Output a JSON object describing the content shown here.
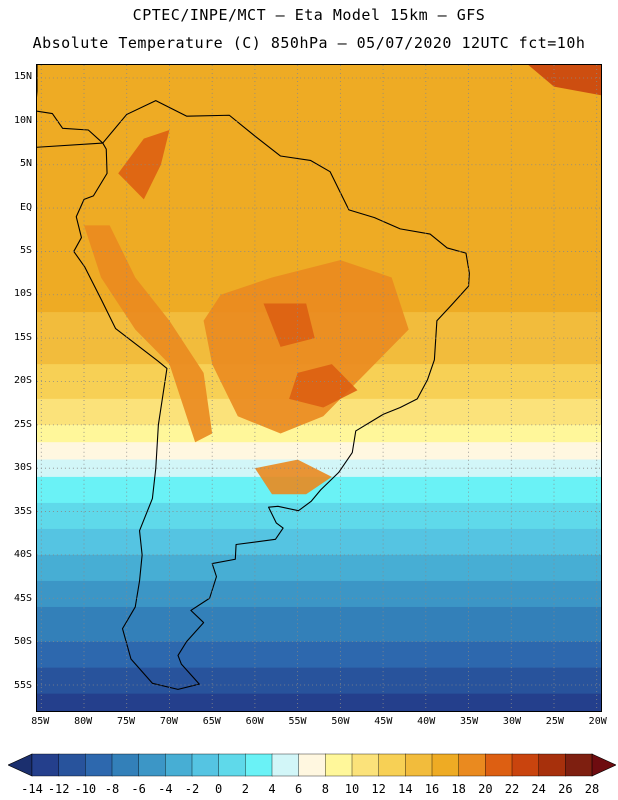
{
  "title_line1": "CPTEC/INPE/MCT –  Eta Model 15km – GFS",
  "title_line2": "Absolute Temperature (C) 850hPa – 05/07/2020 12UTC fct=10h",
  "lat_labels": [
    "15N",
    "10N",
    "5N",
    "EQ",
    "5S",
    "10S",
    "15S",
    "20S",
    "25S",
    "30S",
    "35S",
    "40S",
    "45S",
    "50S",
    "55S"
  ],
  "lat_values": [
    15,
    10,
    5,
    0,
    -5,
    -10,
    -15,
    -20,
    -25,
    -30,
    -35,
    -40,
    -45,
    -50,
    -55
  ],
  "lon_labels": [
    "85W",
    "80W",
    "75W",
    "70W",
    "65W",
    "60W",
    "55W",
    "50W",
    "45W",
    "40W",
    "35W",
    "30W",
    "25W",
    "20W"
  ],
  "lon_values": [
    -85,
    -80,
    -75,
    -70,
    -65,
    -60,
    -55,
    -50,
    -45,
    -40,
    -35,
    -30,
    -25,
    -20
  ],
  "map_extent": {
    "lon_min": -85.5,
    "lon_max": -19.5,
    "lat_min": -58,
    "lat_max": 16.5
  },
  "colorbar": {
    "labels": [
      "-14",
      "-12",
      "-10",
      "-8",
      "-6",
      "-4",
      "-2",
      "0",
      "2",
      "4",
      "6",
      "8",
      "10",
      "12",
      "14",
      "16",
      "18",
      "20",
      "22",
      "24",
      "26",
      "28"
    ],
    "colors": [
      "#243f8c",
      "#28539c",
      "#2d68ae",
      "#3380b9",
      "#3c96c6",
      "#47aed4",
      "#55c4e2",
      "#5fd9ea",
      "#6af2f6",
      "#d2f6f8",
      "#fff7e0",
      "#fff79a",
      "#fbe27a",
      "#f7d055",
      "#f2bc3c",
      "#eeab24",
      "#ea8a1f",
      "#dd5f12",
      "#c9440e",
      "#a7300c",
      "#7e1f10"
    ],
    "low_end": "#1b2f6e",
    "high_end": "#6e0c10"
  },
  "bands": [
    {
      "lat": 16.5,
      "color": "#eeab24"
    },
    {
      "lat": -12,
      "color": "#f2bc3c"
    },
    {
      "lat": -18,
      "color": "#f7d055"
    },
    {
      "lat": -22,
      "color": "#fbe27a"
    },
    {
      "lat": -25,
      "color": "#fff79a"
    },
    {
      "lat": -27,
      "color": "#fff7e0"
    },
    {
      "lat": -29,
      "color": "#d2f6f8"
    },
    {
      "lat": -31,
      "color": "#6af2f6"
    },
    {
      "lat": -34,
      "color": "#5fd9ea"
    },
    {
      "lat": -37,
      "color": "#55c4e2"
    },
    {
      "lat": -40,
      "color": "#47aed4"
    },
    {
      "lat": -43,
      "color": "#3c96c6"
    },
    {
      "lat": -46,
      "color": "#3380b9"
    },
    {
      "lat": -50,
      "color": "#2d68ae"
    },
    {
      "lat": -53,
      "color": "#28539c"
    },
    {
      "lat": -56,
      "color": "#243f8c"
    }
  ],
  "land_outline": [
    [
      -77.8,
      7.5
    ],
    [
      -75,
      10.8
    ],
    [
      -71.6,
      12.4
    ],
    [
      -68,
      10.6
    ],
    [
      -63,
      10.7
    ],
    [
      -60,
      8.3
    ],
    [
      -57,
      6
    ],
    [
      -53.5,
      5.5
    ],
    [
      -51.2,
      4.2
    ],
    [
      -50,
      1.8
    ],
    [
      -49,
      -0.2
    ],
    [
      -46,
      -1.1
    ],
    [
      -43,
      -2.4
    ],
    [
      -39.5,
      -3
    ],
    [
      -37.5,
      -4.6
    ],
    [
      -35.3,
      -5.2
    ],
    [
      -34.9,
      -7.5
    ],
    [
      -35,
      -9
    ],
    [
      -37,
      -11.2
    ],
    [
      -38.7,
      -13
    ],
    [
      -39,
      -17.5
    ],
    [
      -39.8,
      -19.8
    ],
    [
      -41,
      -22
    ],
    [
      -43,
      -23
    ],
    [
      -45,
      -23.8
    ],
    [
      -48.2,
      -25.7
    ],
    [
      -48.6,
      -28.2
    ],
    [
      -50.2,
      -30.5
    ],
    [
      -52.3,
      -32.5
    ],
    [
      -53.4,
      -33.8
    ],
    [
      -54.9,
      -34.9
    ],
    [
      -57.3,
      -34.4
    ],
    [
      -58.4,
      -34.5
    ],
    [
      -57.5,
      -36.3
    ],
    [
      -56.7,
      -36.9
    ],
    [
      -57.6,
      -38.2
    ],
    [
      -62.2,
      -38.8
    ],
    [
      -62.3,
      -40.5
    ],
    [
      -65,
      -41
    ],
    [
      -64.5,
      -42.5
    ],
    [
      -65.3,
      -45
    ],
    [
      -67.5,
      -46.4
    ],
    [
      -66,
      -47.8
    ],
    [
      -68,
      -50
    ],
    [
      -69,
      -51.6
    ],
    [
      -68.6,
      -52.6
    ],
    [
      -66.5,
      -54.9
    ],
    [
      -69,
      -55.5
    ],
    [
      -72,
      -54.8
    ],
    [
      -74.5,
      -52
    ],
    [
      -75.5,
      -48.5
    ],
    [
      -74,
      -46
    ],
    [
      -73.5,
      -43
    ],
    [
      -73.2,
      -40
    ],
    [
      -73.5,
      -37.2
    ],
    [
      -72,
      -33.5
    ],
    [
      -71.6,
      -30
    ],
    [
      -71.3,
      -25
    ],
    [
      -70.3,
      -18.5
    ],
    [
      -71.4,
      -17.6
    ],
    [
      -76.3,
      -13.9
    ],
    [
      -78,
      -10.5
    ],
    [
      -79.9,
      -6.8
    ],
    [
      -81.2,
      -5
    ],
    [
      -80.3,
      -3.4
    ],
    [
      -80.9,
      -1
    ],
    [
      -80,
      1
    ],
    [
      -78.9,
      1.4
    ],
    [
      -77.3,
      4
    ],
    [
      -77.4,
      6.8
    ]
  ],
  "central_america_outline": [
    [
      -77.8,
      7.5
    ],
    [
      -79.5,
      9
    ],
    [
      -82.5,
      9.2
    ],
    [
      -83.7,
      10.9
    ],
    [
      -85.7,
      11.2
    ],
    [
      -85.5,
      13.5
    ],
    [
      -85.5,
      16.5
    ],
    [
      -85.7,
      16.5
    ],
    [
      -85.7,
      7
    ]
  ],
  "warm_regions": [
    {
      "color": "#ea8a1f",
      "points": [
        [
          -64,
          -10
        ],
        [
          -58,
          -8
        ],
        [
          -50,
          -6
        ],
        [
          -44,
          -8
        ],
        [
          -42,
          -14
        ],
        [
          -47,
          -19
        ],
        [
          -52,
          -24
        ],
        [
          -57,
          -26
        ],
        [
          -62,
          -24
        ],
        [
          -65,
          -18
        ],
        [
          -66,
          -13
        ]
      ]
    },
    {
      "color": "#ea8a1f",
      "points": [
        [
          -80,
          -2
        ],
        [
          -78,
          -8
        ],
        [
          -74,
          -14
        ],
        [
          -70,
          -18
        ],
        [
          -68,
          -24
        ],
        [
          -67,
          -27
        ],
        [
          -65,
          -26
        ],
        [
          -66,
          -19
        ],
        [
          -70,
          -13
        ],
        [
          -74,
          -8
        ],
        [
          -77,
          -2
        ]
      ]
    },
    {
      "color": "#dd5f12",
      "points": [
        [
          -76,
          4
        ],
        [
          -73,
          8
        ],
        [
          -70,
          9
        ],
        [
          -71,
          5
        ],
        [
          -73,
          1
        ]
      ]
    },
    {
      "color": "#ea8a1f",
      "points": [
        [
          -60,
          -30
        ],
        [
          -55,
          -29
        ],
        [
          -51,
          -31
        ],
        [
          -54,
          -33
        ],
        [
          -58,
          -33
        ]
      ]
    },
    {
      "color": "#dd5f12",
      "points": [
        [
          -59,
          -11
        ],
        [
          -54,
          -11
        ],
        [
          -53,
          -15
        ],
        [
          -57,
          -16
        ]
      ]
    },
    {
      "color": "#dd5f12",
      "points": [
        [
          -55,
          -19
        ],
        [
          -51,
          -18
        ],
        [
          -48,
          -21
        ],
        [
          -52,
          -23
        ],
        [
          -56,
          -22
        ]
      ]
    },
    {
      "color": "#c9440e",
      "points": [
        [
          -28,
          16.5
        ],
        [
          -19.5,
          16.5
        ],
        [
          -19.5,
          13
        ],
        [
          -25,
          14
        ]
      ]
    }
  ]
}
